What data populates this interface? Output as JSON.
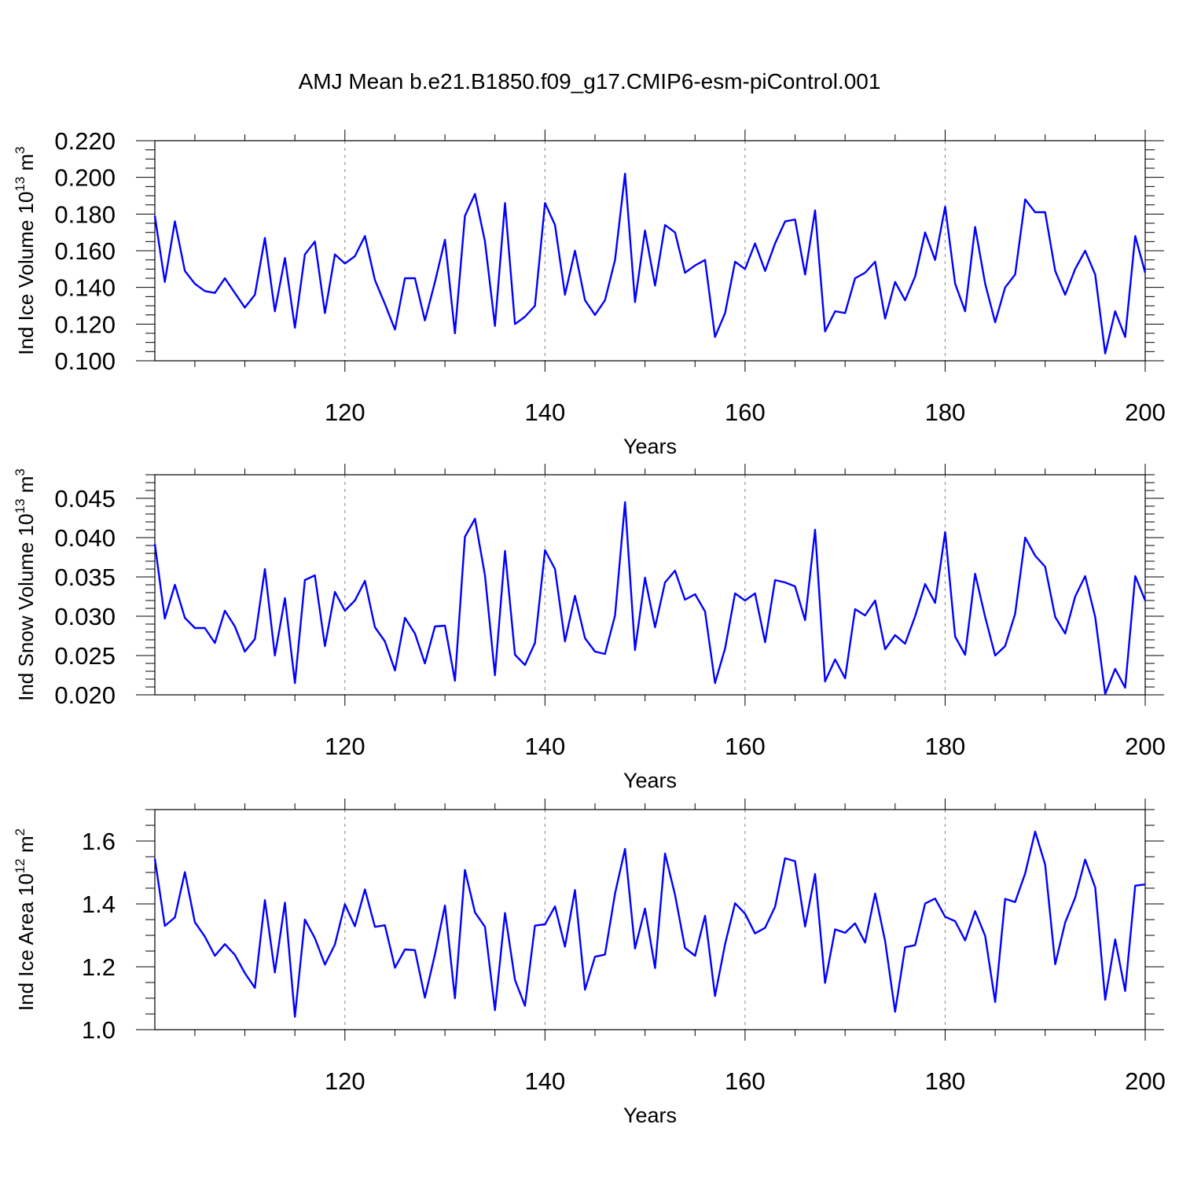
{
  "title": "AMJ Mean b.e21.B1850.f09_g17.CMIP6-esm-piControl.001",
  "colors": {
    "line": "#0000ff",
    "axis": "#000000",
    "grid": "#888888"
  },
  "chart_data": [
    {
      "type": "line",
      "title": "",
      "xlabel": "Years",
      "ylabel_text": "Ind Ice Volume 10",
      "ylabel_exp": "13",
      "ylabel_unit": "m",
      "ylabel_unit_exp": "3",
      "xlim": [
        101,
        200
      ],
      "ylim": [
        0.1,
        0.22
      ],
      "xticks": [
        120,
        140,
        160,
        180,
        200
      ],
      "yticks": [
        0.1,
        0.12,
        0.14,
        0.16,
        0.18,
        0.2,
        0.22
      ],
      "ytick_labels": [
        "0.100",
        "0.120",
        "0.140",
        "0.160",
        "0.180",
        "0.200",
        "0.220"
      ],
      "yminor_step": 0.005,
      "grid": "vertical dashed at major x ticks",
      "x_start": 101,
      "values": [
        0.179,
        0.143,
        0.176,
        0.149,
        0.142,
        0.138,
        0.137,
        0.145,
        0.137,
        0.129,
        0.136,
        0.167,
        0.127,
        0.156,
        0.118,
        0.158,
        0.165,
        0.126,
        0.158,
        0.153,
        0.157,
        0.168,
        0.144,
        0.131,
        0.117,
        0.145,
        0.145,
        0.122,
        0.143,
        0.166,
        0.115,
        0.179,
        0.191,
        0.165,
        0.119,
        0.186,
        0.12,
        0.124,
        0.13,
        0.186,
        0.174,
        0.136,
        0.16,
        0.133,
        0.125,
        0.133,
        0.155,
        0.202,
        0.132,
        0.171,
        0.141,
        0.174,
        0.17,
        0.148,
        0.152,
        0.155,
        0.113,
        0.126,
        0.154,
        0.15,
        0.164,
        0.149,
        0.164,
        0.176,
        0.177,
        0.147,
        0.182,
        0.116,
        0.127,
        0.126,
        0.145,
        0.148,
        0.154,
        0.123,
        0.143,
        0.133,
        0.146,
        0.17,
        0.155,
        0.184,
        0.142,
        0.127,
        0.173,
        0.142,
        0.121,
        0.14,
        0.147,
        0.188,
        0.181,
        0.181,
        0.149,
        0.136,
        0.15,
        0.16,
        0.147,
        0.104,
        0.127,
        0.113,
        0.168,
        0.148
      ]
    },
    {
      "type": "line",
      "title": "",
      "xlabel": "Years",
      "ylabel_text": "Ind Snow Volume 10",
      "ylabel_exp": "13",
      "ylabel_unit": "m",
      "ylabel_unit_exp": "3",
      "xlim": [
        101,
        200
      ],
      "ylim": [
        0.02,
        0.048
      ],
      "xticks": [
        120,
        140,
        160,
        180,
        200
      ],
      "yticks": [
        0.02,
        0.025,
        0.03,
        0.035,
        0.04,
        0.045
      ],
      "ytick_labels": [
        "0.020",
        "0.025",
        "0.030",
        "0.035",
        "0.040",
        "0.045"
      ],
      "yminor_step": 0.001,
      "grid": "vertical dashed at major x ticks",
      "x_start": 101,
      "values": [
        0.0392,
        0.0297,
        0.034,
        0.0298,
        0.0285,
        0.0285,
        0.0266,
        0.0307,
        0.0287,
        0.0255,
        0.0271,
        0.036,
        0.025,
        0.0323,
        0.0215,
        0.0346,
        0.0352,
        0.0262,
        0.0331,
        0.0307,
        0.032,
        0.0345,
        0.0286,
        0.0268,
        0.0231,
        0.0298,
        0.0278,
        0.024,
        0.0287,
        0.0288,
        0.0218,
        0.0401,
        0.0424,
        0.0352,
        0.0225,
        0.0383,
        0.0251,
        0.0238,
        0.0266,
        0.0384,
        0.036,
        0.0268,
        0.0326,
        0.0272,
        0.0255,
        0.0252,
        0.0301,
        0.0445,
        0.0257,
        0.0349,
        0.0286,
        0.0343,
        0.0358,
        0.0321,
        0.0328,
        0.0306,
        0.0215,
        0.0259,
        0.0329,
        0.032,
        0.0329,
        0.0267,
        0.0346,
        0.0343,
        0.0338,
        0.0295,
        0.041,
        0.0217,
        0.0245,
        0.0221,
        0.0309,
        0.0301,
        0.032,
        0.0258,
        0.0276,
        0.0265,
        0.03,
        0.0341,
        0.0317,
        0.0407,
        0.0274,
        0.0251,
        0.0354,
        0.0299,
        0.025,
        0.0262,
        0.0303,
        0.04,
        0.0377,
        0.0363,
        0.0299,
        0.0278,
        0.0325,
        0.0351,
        0.0299,
        0.0201,
        0.0233,
        0.0209,
        0.0351,
        0.032
      ]
    },
    {
      "type": "line",
      "title": "",
      "xlabel": "Years",
      "ylabel_text": "Ind Ice Area 10",
      "ylabel_exp": "12",
      "ylabel_unit": "m",
      "ylabel_unit_exp": "2",
      "xlim": [
        101,
        200
      ],
      "ylim": [
        1.0,
        1.7
      ],
      "xticks": [
        120,
        140,
        160,
        180,
        200
      ],
      "yticks": [
        1.0,
        1.2,
        1.4,
        1.6
      ],
      "ytick_labels": [
        "1.0",
        "1.2",
        "1.4",
        "1.6"
      ],
      "yminor_step": 0.05,
      "grid": "vertical dashed at major x ticks",
      "x_start": 101,
      "values": [
        1.544,
        1.33,
        1.357,
        1.501,
        1.342,
        1.296,
        1.235,
        1.272,
        1.238,
        1.18,
        1.133,
        1.412,
        1.182,
        1.404,
        1.041,
        1.35,
        1.291,
        1.207,
        1.271,
        1.399,
        1.329,
        1.446,
        1.327,
        1.332,
        1.197,
        1.255,
        1.253,
        1.102,
        1.24,
        1.395,
        1.1,
        1.508,
        1.373,
        1.327,
        1.062,
        1.371,
        1.158,
        1.076,
        1.331,
        1.335,
        1.392,
        1.264,
        1.444,
        1.127,
        1.232,
        1.239,
        1.433,
        1.575,
        1.258,
        1.385,
        1.196,
        1.56,
        1.429,
        1.26,
        1.235,
        1.362,
        1.107,
        1.272,
        1.402,
        1.369,
        1.306,
        1.324,
        1.391,
        1.545,
        1.536,
        1.328,
        1.495,
        1.149,
        1.319,
        1.308,
        1.338,
        1.277,
        1.433,
        1.282,
        1.057,
        1.262,
        1.269,
        1.401,
        1.417,
        1.359,
        1.345,
        1.284,
        1.377,
        1.298,
        1.088,
        1.416,
        1.406,
        1.497,
        1.63,
        1.525,
        1.208,
        1.341,
        1.42,
        1.541,
        1.452,
        1.095,
        1.287,
        1.123,
        1.458,
        1.462
      ]
    }
  ]
}
